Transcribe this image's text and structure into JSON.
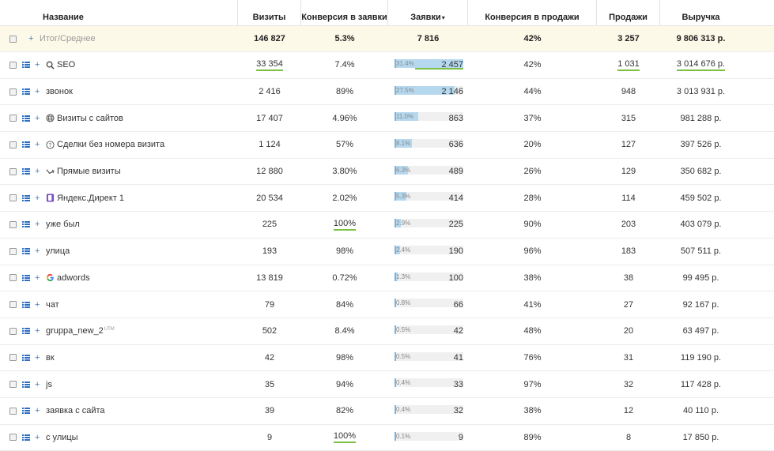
{
  "columns": {
    "name": "Название",
    "visits": "Визиты",
    "conv_requests": "Конверсия в заявки",
    "requests": "Заявки",
    "requests_sort": "▾",
    "conv_sales": "Конверсия в продажи",
    "sales": "Продажи",
    "revenue": "Выручка"
  },
  "total": {
    "name": "Итог/Среднее",
    "visits": "146 827",
    "conv_requests": "5.3%",
    "requests": "7 816",
    "conv_sales": "42%",
    "sales": "3 257",
    "revenue": "9 806 313 р."
  },
  "rows": [
    {
      "name": "SEO",
      "icon": "magnifier-icon",
      "visits": "33 354",
      "conv_requests": "7.4%",
      "share": "31.4%",
      "share_value": 31.4,
      "requests": "2 457",
      "conv_sales": "42%",
      "sales": "1 031",
      "revenue": "3 014 676 р."
    },
    {
      "name": "звонок",
      "icon": "",
      "visits": "2 416",
      "conv_requests": "89%",
      "share": "27.5%",
      "share_value": 27.5,
      "requests": "2 146",
      "conv_sales": "44%",
      "sales": "948",
      "revenue": "3 013 931 р."
    },
    {
      "name": "Визиты с сайтов",
      "icon": "globe-icon",
      "visits": "17 407",
      "conv_requests": "4.96%",
      "share": "11.0%",
      "share_value": 11.0,
      "requests": "863",
      "conv_sales": "37%",
      "sales": "315",
      "revenue": "981 288 р."
    },
    {
      "name": "Сделки без номера визита",
      "icon": "question-icon",
      "visits": "1 124",
      "conv_requests": "57%",
      "share": "8.1%",
      "share_value": 8.1,
      "requests": "636",
      "conv_sales": "20%",
      "sales": "127",
      "revenue": "397 526 р."
    },
    {
      "name": "Прямые визиты",
      "icon": "direct-arrow-icon",
      "visits": "12 880",
      "conv_requests": "3.80%",
      "share": "6.3%",
      "share_value": 6.3,
      "requests": "489",
      "conv_sales": "26%",
      "sales": "129",
      "revenue": "350 682 р."
    },
    {
      "name": "Яндекс.Директ 1",
      "icon": "yandex-direct-icon",
      "visits": "20 534",
      "conv_requests": "2.02%",
      "share": "5.3%",
      "share_value": 5.3,
      "requests": "414",
      "conv_sales": "28%",
      "sales": "114",
      "revenue": "459 502 р."
    },
    {
      "name": "уже был",
      "icon": "",
      "visits": "225",
      "conv_requests": "100%",
      "share": "2.9%",
      "share_value": 2.9,
      "requests": "225",
      "conv_sales": "90%",
      "sales": "203",
      "revenue": "403 079 р."
    },
    {
      "name": "улица",
      "icon": "",
      "visits": "193",
      "conv_requests": "98%",
      "share": "2.4%",
      "share_value": 2.4,
      "requests": "190",
      "conv_sales": "96%",
      "sales": "183",
      "revenue": "507 511 р."
    },
    {
      "name": "adwords",
      "icon": "google-icon",
      "visits": "13 819",
      "conv_requests": "0.72%",
      "share": "1.3%",
      "share_value": 1.3,
      "requests": "100",
      "conv_sales": "38%",
      "sales": "38",
      "revenue": "99 495 р."
    },
    {
      "name": "чат",
      "icon": "",
      "visits": "79",
      "conv_requests": "84%",
      "share": "0.8%",
      "share_value": 0.8,
      "requests": "66",
      "conv_sales": "41%",
      "sales": "27",
      "revenue": "92 167 р."
    },
    {
      "name": "gruppa_new_2",
      "sup": "UTM",
      "icon": "",
      "visits": "502",
      "conv_requests": "8.4%",
      "share": "0.5%",
      "share_value": 0.5,
      "requests": "42",
      "conv_sales": "48%",
      "sales": "20",
      "revenue": "63 497 р."
    },
    {
      "name": "вк",
      "icon": "",
      "visits": "42",
      "conv_requests": "98%",
      "share": "0.5%",
      "share_value": 0.5,
      "requests": "41",
      "conv_sales": "76%",
      "sales": "31",
      "revenue": "119 190 р."
    },
    {
      "name": "js",
      "icon": "",
      "visits": "35",
      "conv_requests": "94%",
      "share": "0.4%",
      "share_value": 0.4,
      "requests": "33",
      "conv_sales": "97%",
      "sales": "32",
      "revenue": "117 428 р."
    },
    {
      "name": "заявка с сайта",
      "icon": "",
      "visits": "39",
      "conv_requests": "82%",
      "share": "0.4%",
      "share_value": 0.4,
      "requests": "32",
      "conv_sales": "38%",
      "sales": "12",
      "revenue": "40 110 р."
    },
    {
      "name": "с улицы",
      "icon": "",
      "visits": "9",
      "conv_requests": "100%",
      "share": "0.1%",
      "share_value": 0.1,
      "requests": "9",
      "conv_sales": "89%",
      "sales": "8",
      "revenue": "17 850 р."
    }
  ],
  "highlights": {
    "underline_color": "#7cbf42",
    "bar_fill": "#b6d8ef",
    "bar_edge": "#79b3e0",
    "total_bg": "#fdf9e9",
    "underlined": {
      "0": [
        "visits",
        "requests",
        "sales",
        "revenue"
      ],
      "6": [
        "conv_requests"
      ],
      "14": [
        "conv_requests"
      ]
    }
  }
}
